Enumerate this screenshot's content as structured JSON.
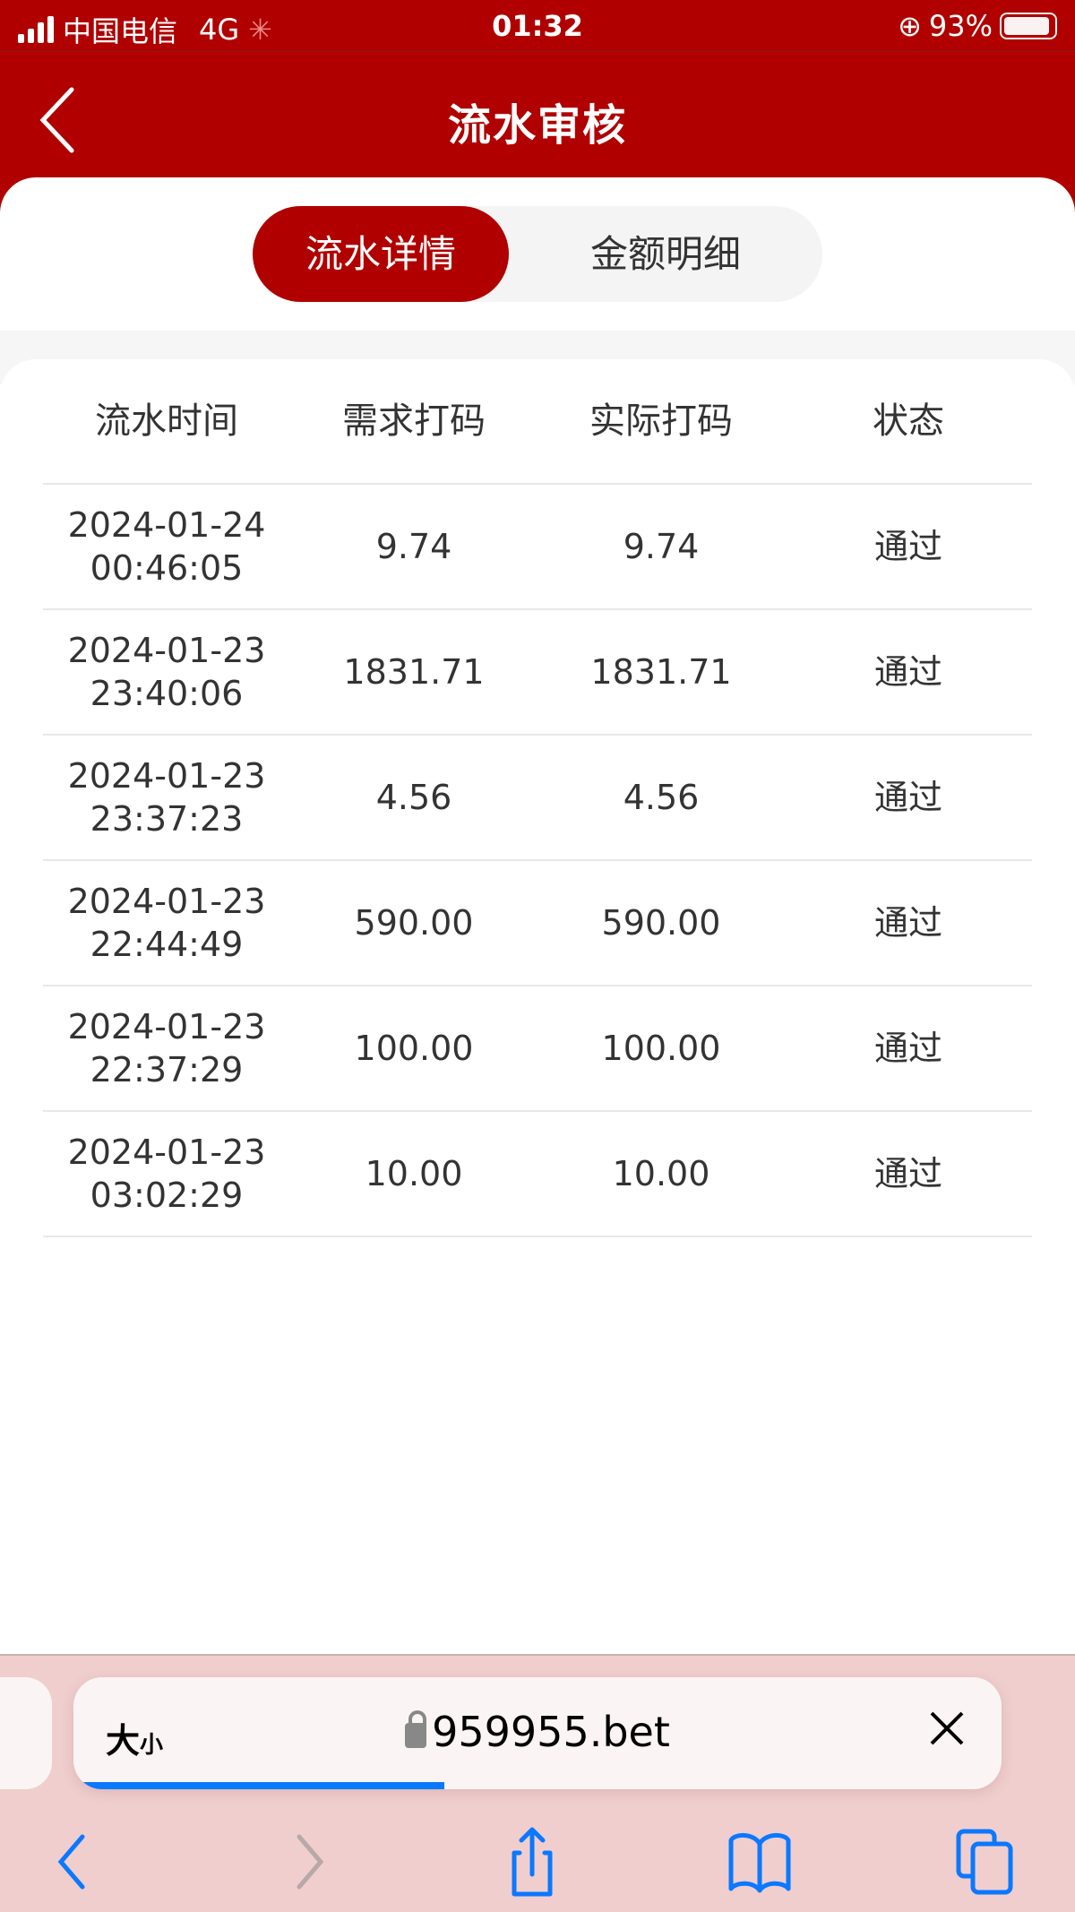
{
  "status_bar": {
    "carrier": "中国电信",
    "network": "4G",
    "time": "01:32",
    "battery": "93%",
    "battery_level": 0.93
  },
  "header": {
    "title": "流水审核"
  },
  "tabs": [
    {
      "label": "流水详情",
      "active": true
    },
    {
      "label": "金额明细",
      "active": false
    }
  ],
  "table": {
    "columns": [
      "流水时间",
      "需求打码",
      "实际打码",
      "状态"
    ],
    "rows": [
      {
        "date": "2024-01-24",
        "time": "00:46:05",
        "required": "9.74",
        "actual": "9.74",
        "status": "通过"
      },
      {
        "date": "2024-01-23",
        "time": "23:40:06",
        "required": "1831.71",
        "actual": "1831.71",
        "status": "通过"
      },
      {
        "date": "2024-01-23",
        "time": "23:37:23",
        "required": "4.56",
        "actual": "4.56",
        "status": "通过"
      },
      {
        "date": "2024-01-23",
        "time": "22:44:49",
        "required": "590.00",
        "actual": "590.00",
        "status": "通过"
      },
      {
        "date": "2024-01-23",
        "time": "22:37:29",
        "required": "100.00",
        "actual": "100.00",
        "status": "通过"
      },
      {
        "date": "2024-01-23",
        "time": "03:02:29",
        "required": "10.00",
        "actual": "10.00",
        "status": "通过"
      }
    ]
  },
  "browser": {
    "text_size_big": "大",
    "text_size_small": "小",
    "url": "959955.bet",
    "load_progress": 0.4,
    "accent": "#0a78ff"
  },
  "colors": {
    "brand": "#b00000"
  }
}
